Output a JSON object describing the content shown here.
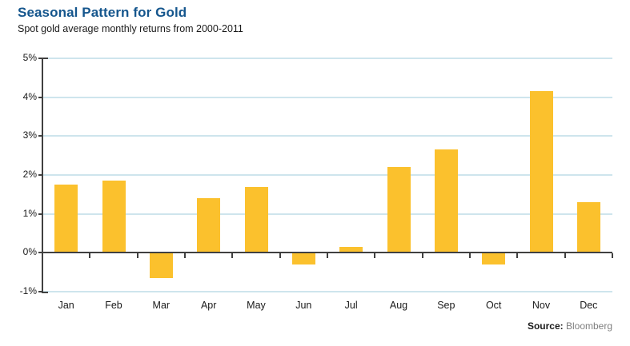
{
  "header": {
    "title": "Seasonal Pattern for Gold",
    "subtitle": "Spot gold average monthly returns from 2000-2011"
  },
  "source": {
    "label": "Source:",
    "value": "Bloomberg"
  },
  "colors": {
    "title_blue": "#15568D",
    "bar_gold": "#FBC12D",
    "gridline_blue": "#CEE5ED",
    "axis_dark": "#404040",
    "source_value_gray": "#7F7F7F"
  },
  "chart_data": {
    "type": "bar",
    "title": "Seasonal Pattern for Gold",
    "subtitle": "Spot gold average monthly returns from 2000-2011",
    "categories": [
      "Jan",
      "Feb",
      "Mar",
      "Apr",
      "May",
      "Jun",
      "Jul",
      "Aug",
      "Sep",
      "Oct",
      "Nov",
      "Dec"
    ],
    "values": [
      1.75,
      1.85,
      -0.65,
      1.4,
      1.7,
      -0.3,
      0.15,
      2.2,
      2.65,
      -0.3,
      4.15,
      1.3
    ],
    "xlabel": "",
    "ylabel": "",
    "ylim": [
      -1,
      5
    ],
    "ytick_step": 1,
    "ytick_labels": [
      "5%",
      "4%",
      "3%",
      "2%",
      "1%",
      "0%",
      "-1%"
    ],
    "ytick_format": "percent",
    "grid": true,
    "legend": false,
    "source": "Bloomberg"
  }
}
